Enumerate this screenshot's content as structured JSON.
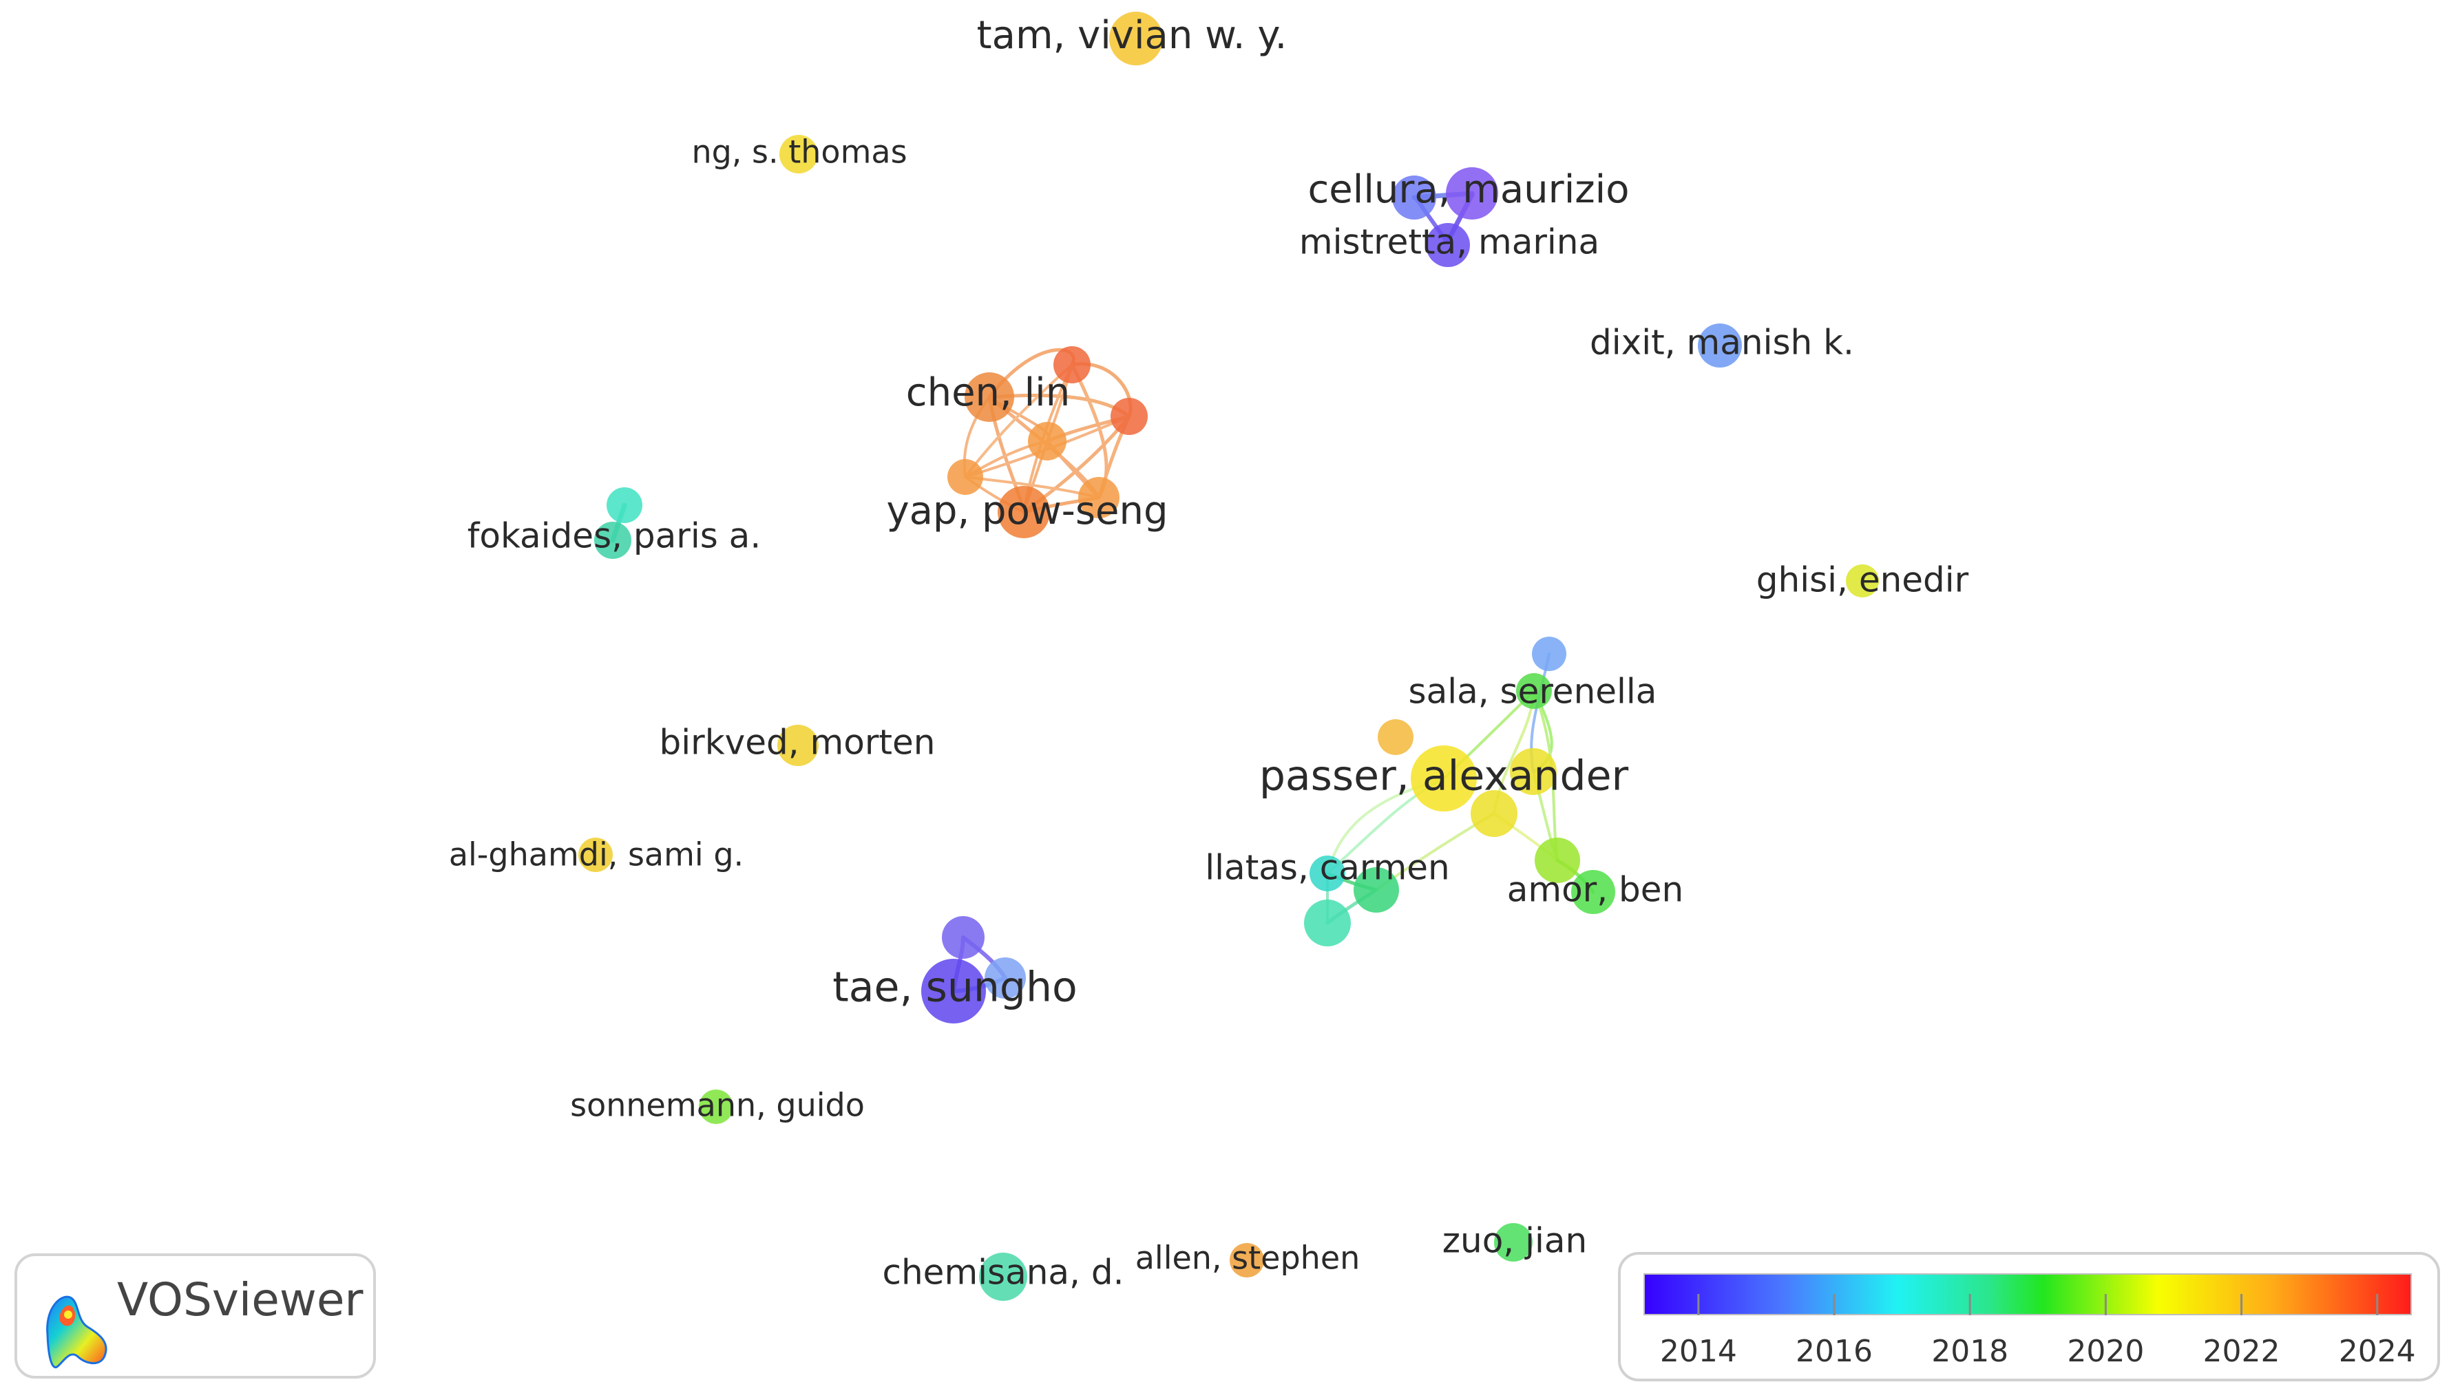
{
  "app": {
    "name": "VOSviewer"
  },
  "color_scale": {
    "ticks": [
      "2014",
      "2016",
      "2018",
      "2020",
      "2022",
      "2024"
    ],
    "min": 2013.2,
    "max": 2024.5
  },
  "labels": {
    "tam": "tam, vivian w. y.",
    "ng": "ng, s. thomas",
    "cellura": "cellura, maurizio",
    "mistretta": "mistretta, marina",
    "dixit": "dixit, manish k.",
    "chen": "chen, lin",
    "yap": "yap, pow-seng",
    "fokaides": "fokaides, paris a.",
    "ghisi": "ghisi, enedir",
    "sala": "sala, serenella",
    "passer": "passer, alexander",
    "birkved": "birkved, morten",
    "alghamdi": "al-ghamdi, sami g.",
    "llatas": "llatas, carmen",
    "amor": "amor, ben",
    "tae": "tae, sungho",
    "sonnemann": "sonnemann, guido",
    "chemisana": "chemisana, d.",
    "allen": "allen, stephen",
    "zuo": "zuo, jian"
  },
  "node_colors": {
    "tam": "#f6c531",
    "ng": "#f2d92d",
    "cellura_left": "#6f7cf6",
    "cellura_right": "#8157f2",
    "mistretta": "#6b4ff0",
    "dixit": "#6e9af3",
    "chen": "#ee8a3f",
    "chen_cluster": "#f59b43",
    "chen_cluster_red": "#f06a3d",
    "yap": "#f07f36",
    "fokaides": "#3ed2a6",
    "fokaides_2": "#41e2c2",
    "ghisi": "#dce62a",
    "sala": "#55dc49",
    "sala_top": "#76a6f5",
    "passer": "#f6e327",
    "passer_orange": "#f3b93c",
    "passer_cluster": "#ecdf2a",
    "birkved": "#f1d12e",
    "alghamdi": "#f0ce2f",
    "llatas": "#35d7c9",
    "llatas_green": "#39d57b",
    "llatas_teal": "#46dfb0",
    "amor": "#52df4b",
    "amor_light": "#9be52e",
    "tae": "#5f47ef",
    "tae_small": "#7764f0",
    "tae_blue": "#7fa3f5",
    "sonnemann": "#7ee43b",
    "chemisana": "#4adaa9",
    "allen": "#f0a13a",
    "zuo": "#49de5d"
  }
}
